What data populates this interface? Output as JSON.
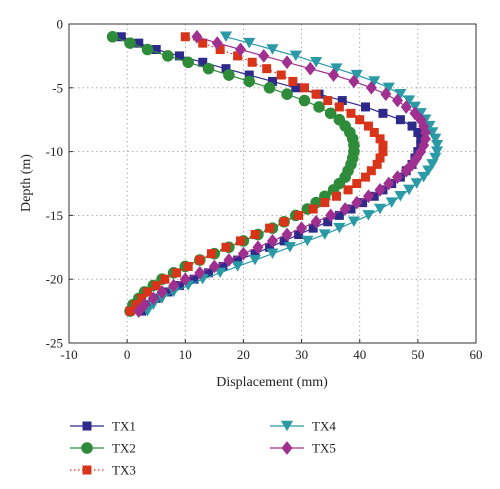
{
  "chart_data": {
    "type": "line",
    "xlabel": "Displacement (mm)",
    "ylabel": "Depth (m)",
    "xlim": [
      -10,
      60
    ],
    "ylim": [
      -25,
      0
    ],
    "xticks": [
      -10,
      0,
      10,
      20,
      30,
      40,
      50,
      60
    ],
    "yticks": [
      0,
      -5,
      -10,
      -15,
      -20,
      -25
    ],
    "grid": true,
    "legend_position": "bottom",
    "series": [
      {
        "name": "TX1",
        "color": "#2e2a8a",
        "marker": "square",
        "line": "solid",
        "points": [
          [
            -1,
            -1
          ],
          [
            2,
            -1.5
          ],
          [
            5,
            -2
          ],
          [
            9,
            -2.5
          ],
          [
            13,
            -3
          ],
          [
            17,
            -3.5
          ],
          [
            21,
            -4
          ],
          [
            25,
            -4.5
          ],
          [
            29,
            -5
          ],
          [
            33,
            -5.5
          ],
          [
            37,
            -6
          ],
          [
            41,
            -6.5
          ],
          [
            44,
            -7
          ],
          [
            47,
            -7.5
          ],
          [
            49,
            -8
          ],
          [
            50,
            -8.5
          ],
          [
            50.5,
            -9
          ],
          [
            50.5,
            -9.5
          ],
          [
            50,
            -10
          ],
          [
            49.5,
            -10.5
          ],
          [
            49,
            -11
          ],
          [
            48,
            -11.5
          ],
          [
            47,
            -12
          ],
          [
            45.5,
            -12.5
          ],
          [
            44,
            -13
          ],
          [
            42.5,
            -13.5
          ],
          [
            40.5,
            -14
          ],
          [
            38.5,
            -14.5
          ],
          [
            36.5,
            -15
          ],
          [
            34.5,
            -15.5
          ],
          [
            32,
            -16
          ],
          [
            29.5,
            -16.5
          ],
          [
            27,
            -17
          ],
          [
            24.5,
            -17.5
          ],
          [
            22,
            -18
          ],
          [
            19,
            -18.5
          ],
          [
            16.5,
            -19
          ],
          [
            14,
            -19.5
          ],
          [
            11.5,
            -20
          ],
          [
            9,
            -20.5
          ],
          [
            7,
            -21
          ],
          [
            5,
            -21.5
          ],
          [
            3.5,
            -22
          ],
          [
            2.5,
            -22.5
          ]
        ]
      },
      {
        "name": "TX2",
        "color": "#2e8b3a",
        "marker": "circle",
        "line": "solid",
        "points": [
          [
            -2.5,
            -1
          ],
          [
            0.5,
            -1.5
          ],
          [
            3.5,
            -2
          ],
          [
            7,
            -2.5
          ],
          [
            10.5,
            -3
          ],
          [
            14,
            -3.5
          ],
          [
            17.5,
            -4
          ],
          [
            21,
            -4.5
          ],
          [
            24.5,
            -5
          ],
          [
            27.5,
            -5.5
          ],
          [
            30.5,
            -6
          ],
          [
            33,
            -6.5
          ],
          [
            35,
            -7
          ],
          [
            36.5,
            -7.5
          ],
          [
            37.5,
            -8
          ],
          [
            38.3,
            -8.5
          ],
          [
            38.8,
            -9
          ],
          [
            39,
            -9.5
          ],
          [
            39,
            -10
          ],
          [
            38.8,
            -10.5
          ],
          [
            38.5,
            -11
          ],
          [
            38,
            -11.5
          ],
          [
            37.5,
            -12
          ],
          [
            36.5,
            -12.5
          ],
          [
            35.5,
            -13
          ],
          [
            34,
            -13.5
          ],
          [
            32.5,
            -14
          ],
          [
            31,
            -14.5
          ],
          [
            29,
            -15
          ],
          [
            27,
            -15.5
          ],
          [
            25,
            -16
          ],
          [
            22.5,
            -16.5
          ],
          [
            20,
            -17
          ],
          [
            17.5,
            -17.5
          ],
          [
            15,
            -18
          ],
          [
            12.5,
            -18.5
          ],
          [
            10,
            -19
          ],
          [
            8,
            -19.5
          ],
          [
            6,
            -20
          ],
          [
            4.5,
            -20.5
          ],
          [
            3,
            -21
          ],
          [
            2,
            -21.5
          ],
          [
            1,
            -22
          ],
          [
            0.5,
            -22.5
          ]
        ]
      },
      {
        "name": "TX3",
        "color": "#d8341a",
        "marker": "square",
        "line": "dotted",
        "points": [
          [
            10,
            -1
          ],
          [
            13,
            -1.5
          ],
          [
            16,
            -2
          ],
          [
            19,
            -2.5
          ],
          [
            21.5,
            -3
          ],
          [
            24,
            -3.5
          ],
          [
            26.5,
            -4
          ],
          [
            28.5,
            -4.5
          ],
          [
            30.5,
            -5
          ],
          [
            32.5,
            -5.5
          ],
          [
            34.5,
            -6
          ],
          [
            36.5,
            -6.5
          ],
          [
            38.5,
            -7
          ],
          [
            40,
            -7.5
          ],
          [
            41.5,
            -8
          ],
          [
            42.5,
            -8.5
          ],
          [
            43.5,
            -9
          ],
          [
            44,
            -9.5
          ],
          [
            44,
            -10
          ],
          [
            43.5,
            -10.5
          ],
          [
            43,
            -11
          ],
          [
            42,
            -11.5
          ],
          [
            41,
            -12
          ],
          [
            39.5,
            -12.5
          ],
          [
            38,
            -13
          ],
          [
            36,
            -13.5
          ],
          [
            34,
            -14
          ],
          [
            32,
            -14.5
          ],
          [
            29.5,
            -15
          ],
          [
            27,
            -15.5
          ],
          [
            24.5,
            -16
          ],
          [
            22,
            -16.5
          ],
          [
            19.5,
            -17
          ],
          [
            17,
            -17.5
          ],
          [
            14.5,
            -18
          ],
          [
            12.5,
            -18.5
          ],
          [
            10.5,
            -19
          ],
          [
            8.5,
            -19.5
          ],
          [
            6.5,
            -20
          ],
          [
            5,
            -20.5
          ],
          [
            3.5,
            -21
          ],
          [
            2.5,
            -21.5
          ],
          [
            1.5,
            -22
          ],
          [
            0.5,
            -22.5
          ]
        ]
      },
      {
        "name": "TX4",
        "color": "#2a9aa6",
        "marker": "triangle-down",
        "line": "solid",
        "points": [
          [
            17,
            -1
          ],
          [
            21,
            -1.5
          ],
          [
            25,
            -2
          ],
          [
            29,
            -2.5
          ],
          [
            32.5,
            -3
          ],
          [
            36,
            -3.5
          ],
          [
            39.5,
            -4
          ],
          [
            42.5,
            -4.5
          ],
          [
            45,
            -5
          ],
          [
            47,
            -5.5
          ],
          [
            48.5,
            -6
          ],
          [
            49.5,
            -6.5
          ],
          [
            50.5,
            -7
          ],
          [
            51.3,
            -7.5
          ],
          [
            52,
            -8
          ],
          [
            52.5,
            -8.5
          ],
          [
            53,
            -9
          ],
          [
            53.3,
            -9.5
          ],
          [
            53.3,
            -10
          ],
          [
            53,
            -10.5
          ],
          [
            52.5,
            -11
          ],
          [
            51.8,
            -11.5
          ],
          [
            51,
            -12
          ],
          [
            49.8,
            -12.5
          ],
          [
            48.5,
            -13
          ],
          [
            47,
            -13.5
          ],
          [
            45.5,
            -14
          ],
          [
            43.5,
            -14.5
          ],
          [
            41.5,
            -15
          ],
          [
            39,
            -15.5
          ],
          [
            36.5,
            -16
          ],
          [
            34,
            -16.5
          ],
          [
            31,
            -17
          ],
          [
            28,
            -17.5
          ],
          [
            25,
            -18
          ],
          [
            22,
            -18.5
          ],
          [
            19,
            -19
          ],
          [
            16,
            -19.5
          ],
          [
            13,
            -20
          ],
          [
            10.5,
            -20.5
          ],
          [
            8,
            -21
          ],
          [
            6,
            -21.5
          ],
          [
            4.5,
            -22
          ],
          [
            3.5,
            -22.5
          ]
        ]
      },
      {
        "name": "TX5",
        "color": "#a0308f",
        "marker": "diamond",
        "line": "solid",
        "points": [
          [
            12,
            -1
          ],
          [
            15.5,
            -1.5
          ],
          [
            19.5,
            -2
          ],
          [
            23.5,
            -2.5
          ],
          [
            27.5,
            -3
          ],
          [
            31.5,
            -3.5
          ],
          [
            35.5,
            -4
          ],
          [
            39,
            -4.5
          ],
          [
            42,
            -5
          ],
          [
            44.5,
            -5.5
          ],
          [
            46.5,
            -6
          ],
          [
            48,
            -6.5
          ],
          [
            49.5,
            -7
          ],
          [
            50.5,
            -7.5
          ],
          [
            51,
            -8
          ],
          [
            51.3,
            -8.5
          ],
          [
            51.3,
            -9
          ],
          [
            51,
            -9.5
          ],
          [
            50.5,
            -10
          ],
          [
            49.8,
            -10.5
          ],
          [
            49,
            -11
          ],
          [
            48,
            -11.5
          ],
          [
            46.5,
            -12
          ],
          [
            45,
            -12.5
          ],
          [
            43.5,
            -13
          ],
          [
            41.5,
            -13.5
          ],
          [
            39.5,
            -14
          ],
          [
            37.5,
            -14.5
          ],
          [
            35,
            -15
          ],
          [
            32.5,
            -15.5
          ],
          [
            30,
            -16
          ],
          [
            27.5,
            -16.5
          ],
          [
            25,
            -17
          ],
          [
            22.5,
            -17.5
          ],
          [
            20,
            -18
          ],
          [
            17.5,
            -18.5
          ],
          [
            15,
            -19
          ],
          [
            12.5,
            -19.5
          ],
          [
            10,
            -20
          ],
          [
            8,
            -20.5
          ],
          [
            6,
            -21
          ],
          [
            4.5,
            -21.5
          ],
          [
            3,
            -22
          ],
          [
            2,
            -22.5
          ]
        ]
      }
    ]
  }
}
